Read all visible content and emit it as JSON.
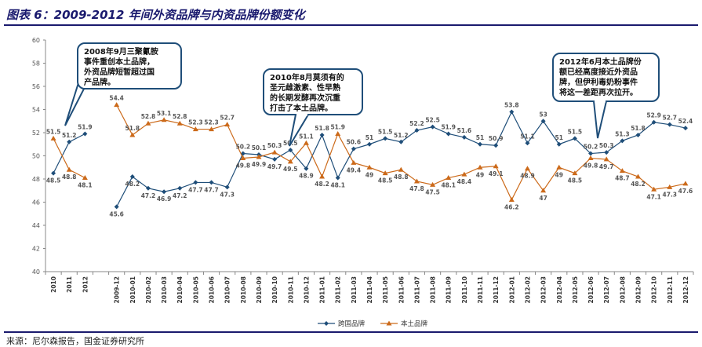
{
  "page": {
    "title": "图表 6：2009-2012 年间外资品牌与内资品牌份额变化",
    "source": "来源：尼尔森报告，国金证券研究所"
  },
  "colors": {
    "series1": "#1f4e79",
    "series2": "#cc6a1a",
    "accent": "#1a1a6e"
  },
  "chart_data": {
    "type": "line",
    "ylim": [
      40,
      60
    ],
    "yticks": [
      40,
      42,
      44,
      46,
      48,
      50,
      52,
      54,
      56,
      58,
      60
    ],
    "grid": false,
    "legend_position": "bottom",
    "categories": [
      "2010",
      "2011",
      "2012",
      "",
      "2009-12",
      "2010-01",
      "2010-02",
      "2010-03",
      "2010-04",
      "2010-05",
      "2010-06",
      "2010-07",
      "2010-08",
      "2010-09",
      "2010-10",
      "2010-11",
      "2010-12",
      "2011-01",
      "2011-02",
      "2011-03",
      "2011-04",
      "2011-05",
      "2011-06",
      "2011-07",
      "2011-08",
      "2011-09",
      "2011-10",
      "2011-11",
      "2011-12",
      "2012-01",
      "2012-02",
      "2012-03",
      "2012-04",
      "2012-05",
      "2012-06",
      "2012-07",
      "2012-08",
      "2012-09",
      "2012-10",
      "2012-11",
      "2012-12"
    ],
    "series": [
      {
        "name": "跨国品牌",
        "values": [
          48.5,
          51.2,
          51.9,
          null,
          45.6,
          48.2,
          47.2,
          46.9,
          47.2,
          47.7,
          47.7,
          47.3,
          50.2,
          50.1,
          49.7,
          50.5,
          48.9,
          51.8,
          48.1,
          50.6,
          51,
          51.5,
          51.2,
          52.2,
          52.5,
          51.9,
          51.6,
          51,
          50.9,
          53.8,
          51.1,
          53,
          51,
          51.5,
          50.2,
          50.3,
          51.3,
          51.8,
          52.9,
          52.7,
          52.4
        ],
        "labels": [
          "48.5",
          "51.2",
          "51.9",
          "",
          "45.6",
          "48.2",
          "47.2",
          "46.9",
          "47.2",
          "47.7",
          "47.7",
          "47.3",
          "50.2",
          "50.1",
          "49.7",
          "50.5",
          "48.9",
          "51.8",
          "48.1",
          "50.6",
          "51",
          "51.5",
          "51.2",
          "52.2",
          "52.5",
          "51.9",
          "51.6",
          "51",
          "50.9",
          "53.8",
          "51.1",
          "53",
          "51",
          "51.5",
          "50.2",
          "50.3",
          "51.3",
          "51.8",
          "52.9",
          "52.7",
          "52.4"
        ]
      },
      {
        "name": "本土品牌",
        "values": [
          51.5,
          48.8,
          48.1,
          null,
          54.4,
          51.8,
          52.8,
          53.1,
          52.8,
          52.3,
          52.3,
          52.7,
          49.8,
          49.9,
          50.3,
          49.5,
          51.1,
          48.2,
          51.9,
          49.4,
          49,
          48.5,
          48.8,
          47.8,
          47.5,
          48.1,
          48.4,
          49,
          49.1,
          46.2,
          48.9,
          47,
          49,
          48.5,
          49.8,
          49.7,
          48.7,
          48.2,
          47.1,
          47.3,
          47.6
        ],
        "labels": [
          "51.5",
          "48.8",
          "48.1",
          "",
          "54.4",
          "51.8",
          "52.8",
          "53.1",
          "52.8",
          "52.3",
          "52.3",
          "52.7",
          "49.8",
          "49.9",
          "50.3",
          "49.5",
          "51.1",
          "48.2",
          "51.9",
          "49.4",
          "49",
          "48.5",
          "48.8",
          "47.8",
          "47.5",
          "48.1",
          "48.4",
          "49",
          "49.1",
          "46.2",
          "48.9",
          "47",
          "49",
          "48.5",
          "49.8",
          "49.7",
          "48.7",
          "48.2",
          "47.1",
          "47.3",
          "47.6"
        ]
      }
    ],
    "annotations": [
      {
        "text": [
          "2008年9月三聚氰胺",
          "事件重创本土品牌，",
          "外资品牌短暂超过国",
          "产品牌。"
        ]
      },
      {
        "text": [
          "2010年8月莫须有的",
          "圣元雌激素、性早熟",
          "的长期发酵再次沉重",
          "打击了本土品牌。"
        ]
      },
      {
        "text": [
          "2012年6月本土品牌份",
          "额已经高度接近外资品",
          "牌，但伊利毒奶粉事件",
          "将这一差距再次拉开。"
        ]
      }
    ]
  }
}
